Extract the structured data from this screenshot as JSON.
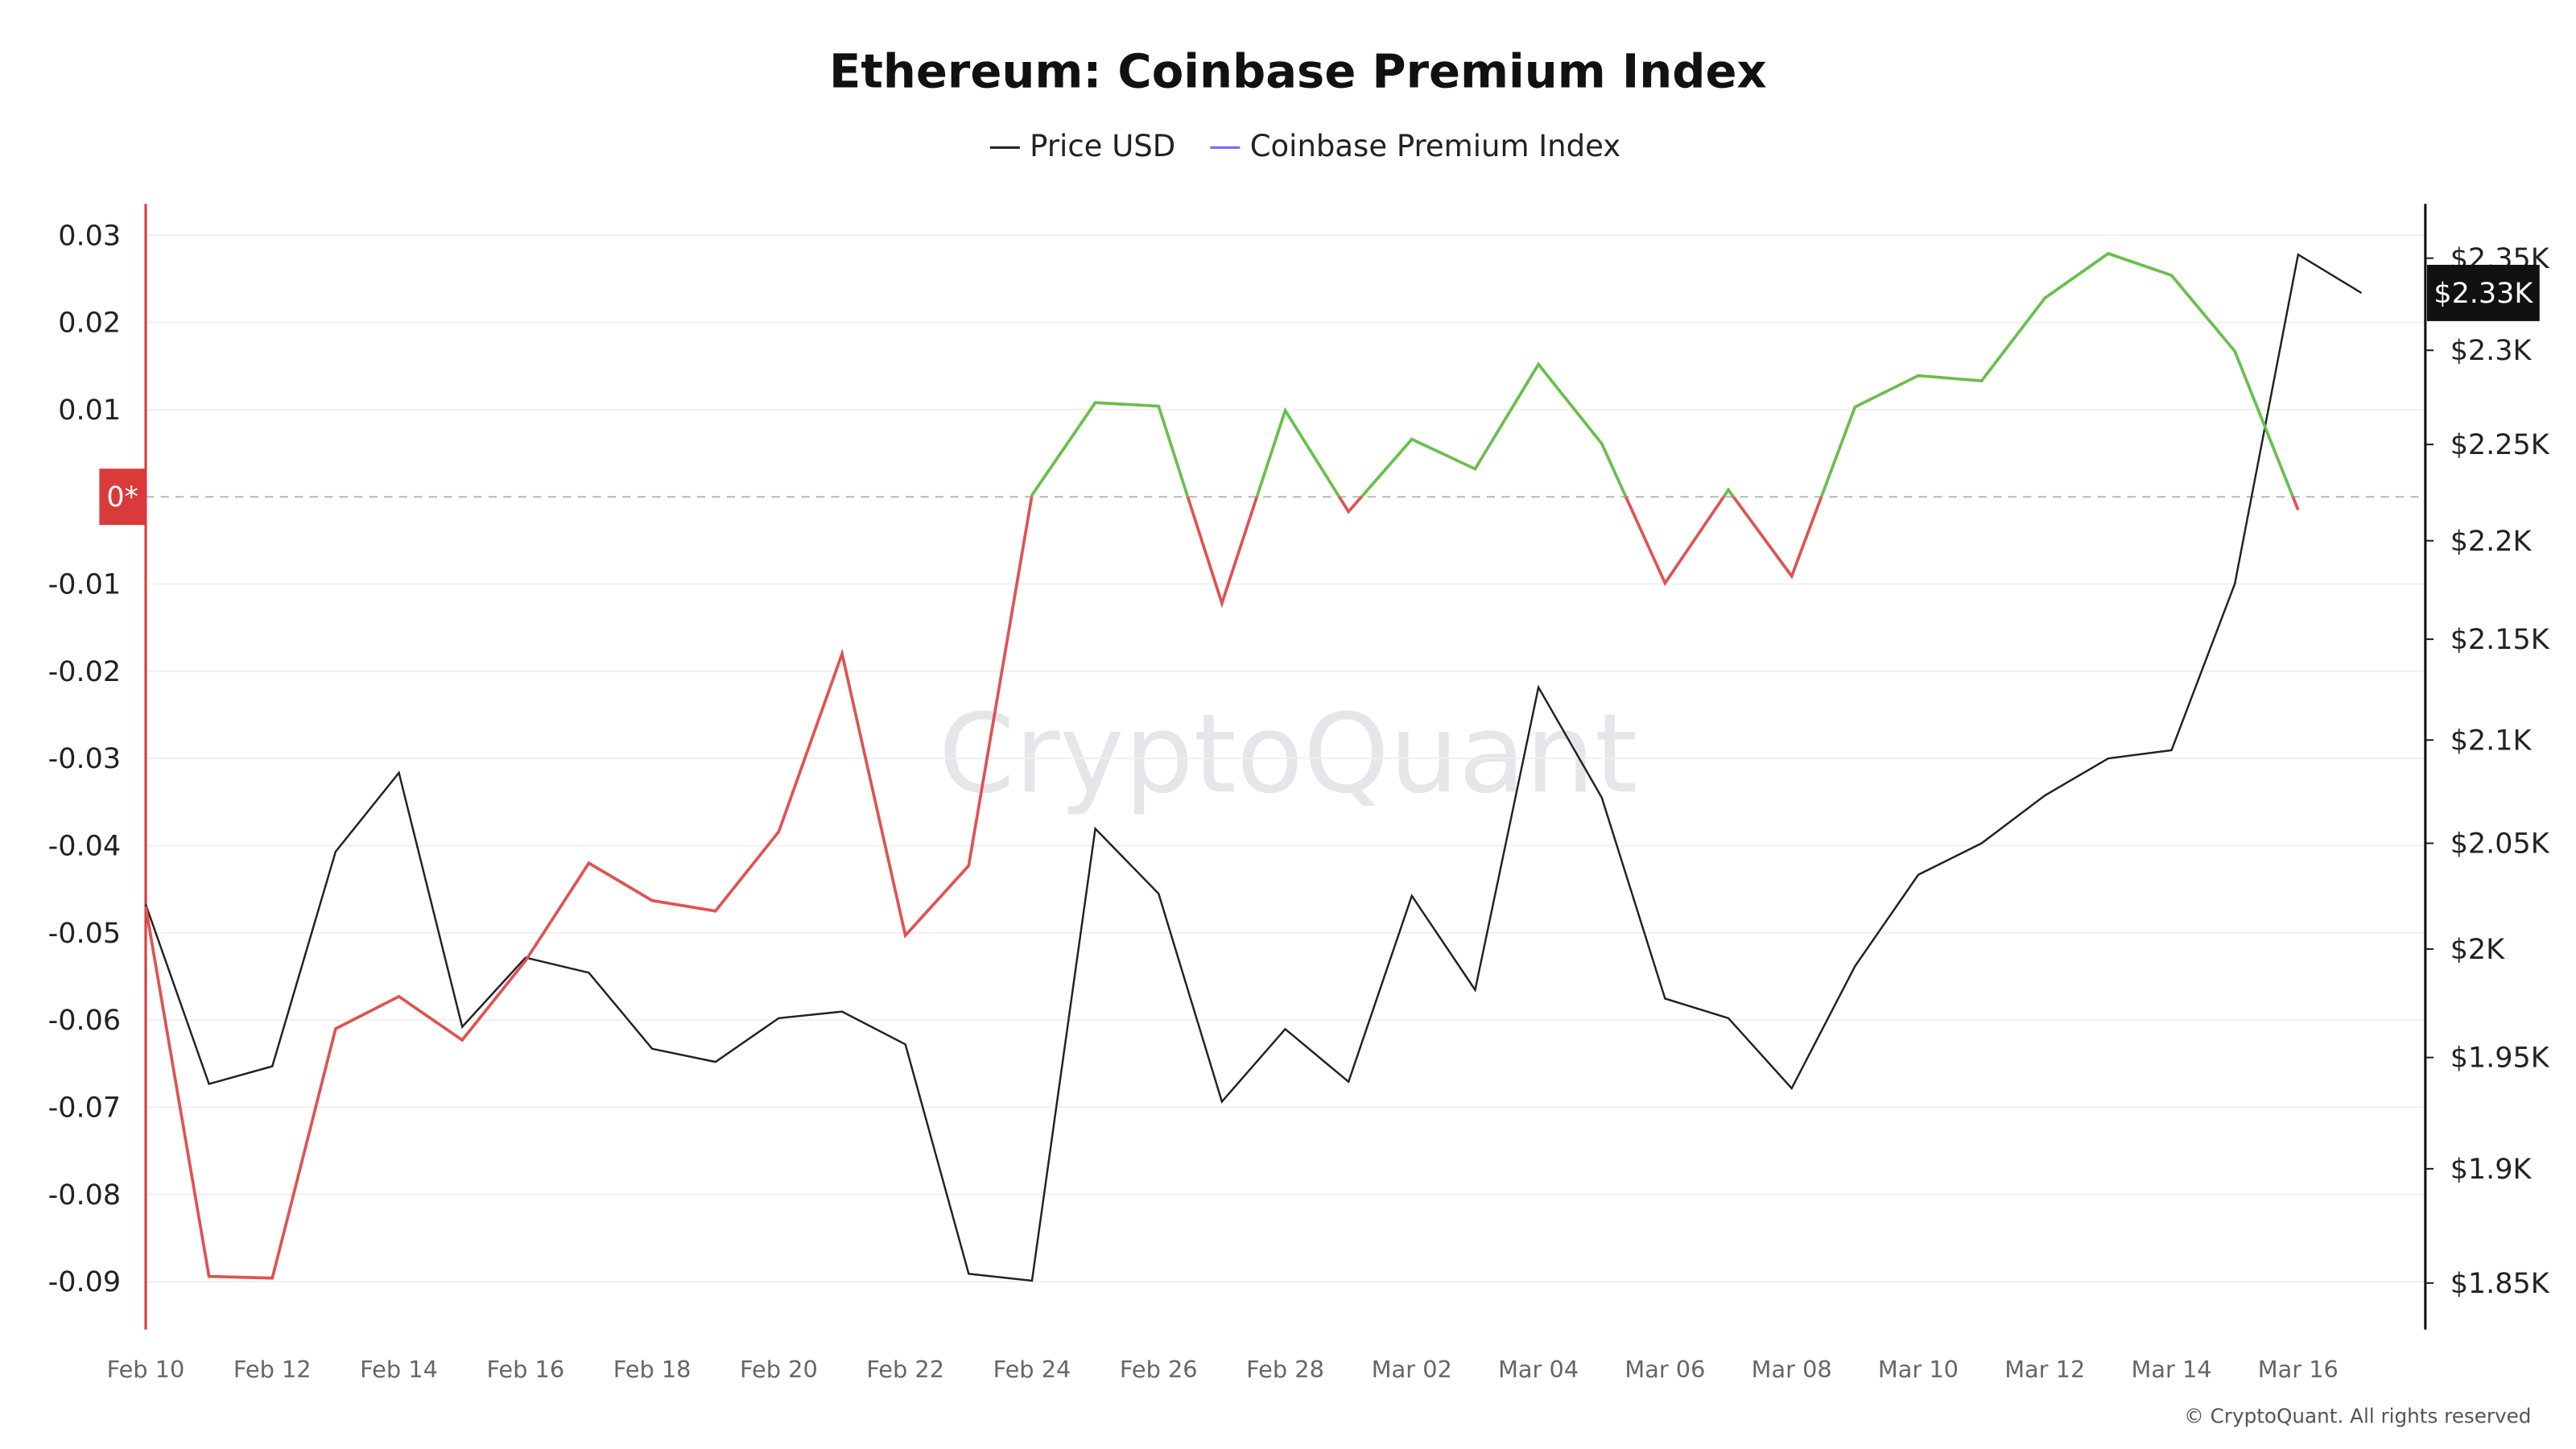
{
  "chart_data": {
    "type": "line",
    "title": "Ethereum: Coinbase Premium Index",
    "watermark": "CryptoQuant",
    "footer": "© CryptoQuant. All rights reserved",
    "annotation": "$2.33K",
    "categories": [
      "Feb 10",
      null,
      "Feb 12",
      null,
      "Feb 14",
      null,
      "Feb 16",
      null,
      "Feb 18",
      null,
      "Feb 20",
      null,
      "Feb 22",
      null,
      "Feb 24",
      null,
      "Feb 26",
      null,
      "Feb 28",
      null,
      "Mar 02",
      null,
      "Mar 04",
      null,
      "Mar 06",
      null,
      "Mar 08",
      null,
      "Mar 10",
      null,
      "Mar 12",
      null,
      "Mar 14",
      null,
      "Mar 16",
      null
    ],
    "series": [
      {
        "name": "Price USD",
        "color": "#222222",
        "axis": "y2",
        "values": [
          2021,
          1938,
          1946,
          2046,
          2084,
          1964,
          1996,
          1989,
          1954,
          1948,
          1968,
          1971,
          1956,
          1854,
          1851,
          2057,
          2026,
          1930,
          1963,
          1939,
          2025,
          1981,
          2126,
          2072,
          1977,
          1968,
          1936,
          1992,
          2035,
          2050,
          2073,
          2091,
          2095,
          2178,
          2352,
          2331
        ]
      },
      {
        "name": "Coinbase Premium Index",
        "color": "#7b68ee",
        "positive_color": "#6abf4b",
        "negative_color": "#e05252",
        "values": [
          -0.047,
          -0.0894,
          -0.0896,
          -0.061,
          -0.0573,
          -0.0623,
          -0.0532,
          -0.042,
          -0.0463,
          -0.0475,
          -0.0384,
          -0.018,
          -0.0503,
          -0.0423,
          0.0002,
          0.0108,
          0.0104,
          -0.0122,
          0.0099,
          -0.0017,
          0.0066,
          0.0032,
          0.0152,
          0.0061,
          -0.0099,
          0.0008,
          -0.0091,
          0.0103,
          0.0139,
          0.0133,
          0.0228,
          0.0279,
          0.0254,
          0.0167,
          -0.0015,
          null
        ]
      }
    ],
    "ylim": [
      -0.0955,
      0.0336
    ],
    "yticks": [
      0.03,
      0.02,
      0.01,
      {
        "value": 0,
        "label": "0*"
      },
      -0.01,
      -0.02,
      -0.03,
      -0.04,
      -0.05,
      -0.06,
      -0.07,
      -0.08,
      -0.09
    ],
    "y2lim": [
      1830,
      2380
    ],
    "y2log": true,
    "y2ticks": [
      {
        "value": 2350,
        "label": "$2.35K"
      },
      {
        "value": 2300,
        "label": "$2.3K"
      },
      {
        "value": 2250,
        "label": "$2.25K"
      },
      {
        "value": 2200,
        "label": "$2.2K"
      },
      {
        "value": 2150,
        "label": "$2.15K"
      },
      {
        "value": 2100,
        "label": "$2.1K"
      },
      {
        "value": 2050,
        "label": "$2.05K"
      },
      {
        "value": 2000,
        "label": "$2K"
      },
      {
        "value": 1950,
        "label": "$1.95K"
      },
      {
        "value": 1900,
        "label": "$1.9K"
      },
      {
        "value": 1850,
        "label": "$1.85K"
      }
    ],
    "grid": true,
    "legend": "top"
  }
}
